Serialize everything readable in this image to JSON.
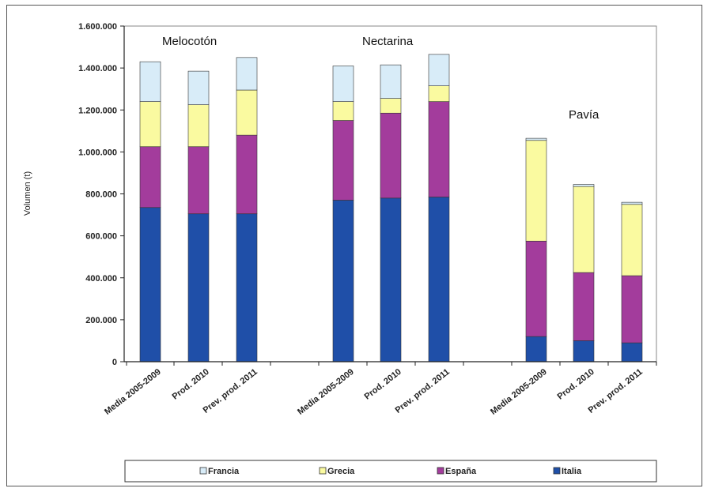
{
  "chart_data": {
    "type": "bar",
    "stacked": true,
    "ylabel": "Volumen (t)",
    "ylim": [
      0,
      1600000
    ],
    "yticks": [
      0,
      200000,
      400000,
      600000,
      800000,
      1000000,
      1200000,
      1400000,
      1600000
    ],
    "ytick_labels": [
      "0",
      "200.000",
      "400.000",
      "600.000",
      "800.000",
      "1.000.000",
      "1.200.000",
      "1.400.000",
      "1.600.000"
    ],
    "groups": [
      {
        "name": "Melocotón",
        "categories": [
          "Media 2005-2009",
          "Prod. 2010",
          "Prev. prod. 2011"
        ]
      },
      {
        "name": "Nectarina",
        "categories": [
          "Media 2005-2009",
          "Prod. 2010",
          "Prev. prod. 2011"
        ]
      },
      {
        "name": "Pavía",
        "categories": [
          "Media 2005-2009",
          "Prod. 2010",
          "Prev. prod. 2011"
        ]
      }
    ],
    "categories": [
      "Media 2005-2009",
      "Prod. 2010",
      "Prev. prod. 2011",
      "Media 2005-2009",
      "Prod. 2010",
      "Prev. prod. 2011",
      "Media 2005-2009",
      "Prod. 2010",
      "Prev. prod. 2011"
    ],
    "series": [
      {
        "name": "Italia",
        "color": "#1f4fa8",
        "values": [
          735000,
          705000,
          705000,
          770000,
          780000,
          785000,
          120000,
          100000,
          90000
        ]
      },
      {
        "name": "España",
        "color": "#a33c9c",
        "values": [
          290000,
          320000,
          375000,
          380000,
          405000,
          455000,
          455000,
          325000,
          320000
        ]
      },
      {
        "name": "Grecia",
        "color": "#fafaa0",
        "values": [
          215000,
          200000,
          215000,
          90000,
          70000,
          75000,
          480000,
          410000,
          340000
        ]
      },
      {
        "name": "Francia",
        "color": "#d8ecf8",
        "values": [
          190000,
          160000,
          155000,
          170000,
          160000,
          150000,
          10000,
          10000,
          10000
        ]
      }
    ],
    "legend": {
      "position": "bottom",
      "order": [
        "Francia",
        "Grecia",
        "España",
        "Italia"
      ]
    },
    "grid": false
  }
}
